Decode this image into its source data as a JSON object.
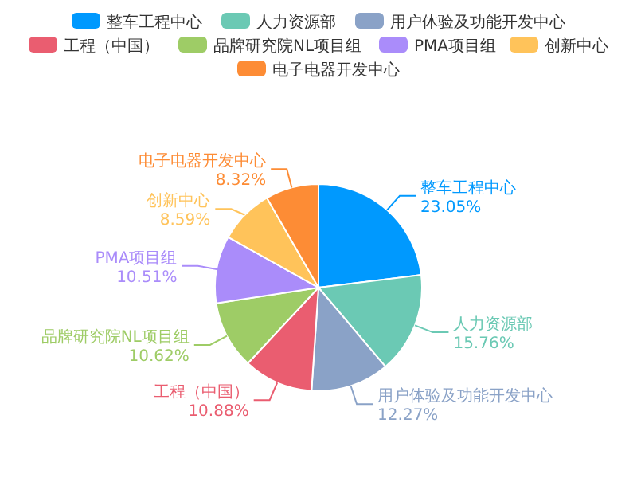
{
  "chart_data": {
    "type": "pie",
    "categories": [
      "整车工程中心",
      "人力资源部",
      "用户体验及功能开发中心",
      "工程（中国）",
      "品牌研究院NL项目组",
      "PMA项目组",
      "创新中心",
      "电子电器开发中心"
    ],
    "values": [
      23.05,
      15.76,
      12.27,
      10.88,
      10.62,
      10.51,
      8.59,
      8.32
    ],
    "colors": [
      "#0099fe",
      "#6bc9b4",
      "#8aa2c7",
      "#ea5d70",
      "#9ecc66",
      "#aa8cfa",
      "#ffc35a",
      "#fd8c35"
    ],
    "value_labels": [
      "23.05%",
      "15.76%",
      "12.27%",
      "10.88%",
      "10.62%",
      "10.51%",
      "8.59%",
      "8.32%"
    ],
    "legend": "top"
  }
}
